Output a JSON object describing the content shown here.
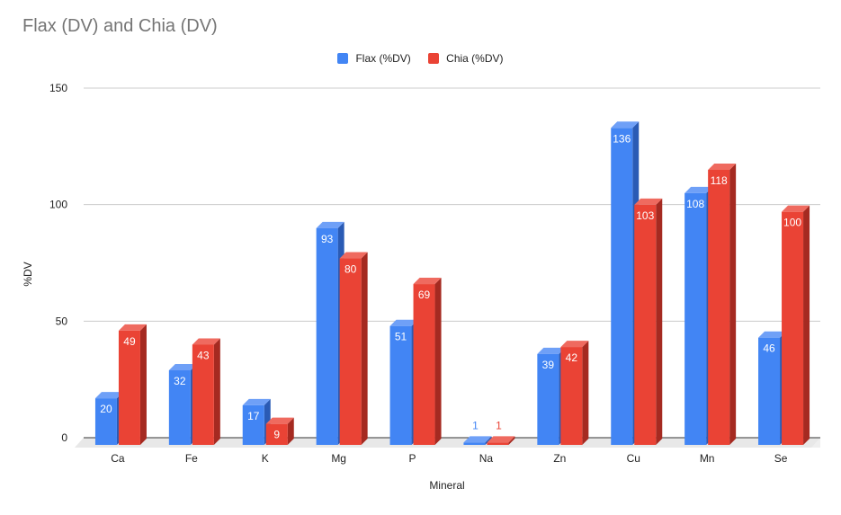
{
  "chart_data": {
    "type": "bar",
    "title": "Flax (DV) and Chia (DV)",
    "xlabel": "Mineral",
    "ylabel": "%DV",
    "ylim": [
      0,
      150
    ],
    "yticks": [
      0,
      50,
      100,
      150
    ],
    "grid": true,
    "legend_position": "top",
    "categories": [
      "Ca",
      "Fe",
      "K",
      "Mg",
      "P",
      "Na",
      "Zn",
      "Cu",
      "Mn",
      "Se"
    ],
    "series": [
      {
        "name": "Flax (%DV)",
        "color": "#4285f4",
        "side": "#2a5bb5",
        "top": "#6fa0f7",
        "values": [
          20,
          32,
          17,
          93,
          51,
          1,
          39,
          136,
          108,
          46
        ]
      },
      {
        "name": "Chia (%DV)",
        "color": "#ea4335",
        "side": "#a52a21",
        "top": "#ef6a5f",
        "values": [
          49,
          43,
          9,
          80,
          69,
          1,
          42,
          103,
          118,
          100
        ]
      }
    ]
  }
}
